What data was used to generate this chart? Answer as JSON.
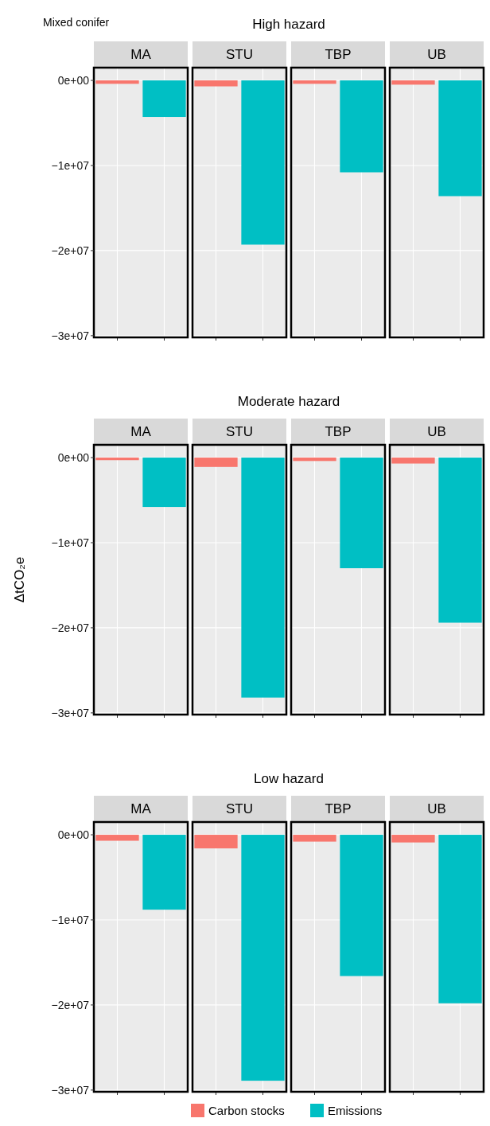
{
  "chart_data": [
    {
      "type": "bar",
      "title": "High hazard",
      "annotations": [
        "Mixed conifer"
      ],
      "categories": [
        "MA",
        "STU",
        "TBP",
        "UB"
      ],
      "series": [
        {
          "color": "#f8766d",
          "values": [
            -400000,
            -700000,
            -400000,
            -500000
          ]
        },
        {
          "color": "#00bfc4",
          "values": [
            -4300000,
            -19300000,
            -10800000,
            -13600000
          ]
        }
      ],
      "ylim": [
        -30200000,
        1500000
      ],
      "yticks": [
        {
          "value": 0,
          "label": "0e+00"
        },
        {
          "value": -10000000,
          "label": "−1e+07"
        },
        {
          "value": -20000000,
          "label": "−2e+07"
        },
        {
          "value": -30000000,
          "label": "−3e+07"
        }
      ],
      "grid": true
    },
    {
      "type": "bar",
      "title": "Moderate hazard",
      "ylabel": "ΔtCO₂e",
      "categories": [
        "MA",
        "STU",
        "TBP",
        "UB"
      ],
      "series": [
        {
          "color": "#f8766d",
          "values": [
            -300000,
            -1100000,
            -400000,
            -700000
          ]
        },
        {
          "color": "#00bfc4",
          "values": [
            -5800000,
            -28200000,
            -13000000,
            -19400000
          ]
        }
      ],
      "ylim": [
        -30200000,
        1500000
      ],
      "yticks": [
        {
          "value": 0,
          "label": "0e+00"
        },
        {
          "value": -10000000,
          "label": "−1e+07"
        },
        {
          "value": -20000000,
          "label": "−2e+07"
        },
        {
          "value": -30000000,
          "label": "−3e+07"
        }
      ],
      "grid": true
    },
    {
      "type": "bar",
      "title": "Low hazard",
      "categories": [
        "MA",
        "STU",
        "TBP",
        "UB"
      ],
      "series": [
        {
          "name": "Carbon stocks",
          "color": "#f8766d",
          "values": [
            -700000,
            -1600000,
            -800000,
            -900000
          ]
        },
        {
          "name": "Emissions",
          "color": "#00bfc4",
          "values": [
            -8800000,
            -28900000,
            -16600000,
            -19800000
          ]
        }
      ],
      "ylim": [
        -30200000,
        1500000
      ],
      "yticks": [
        {
          "value": 0,
          "label": "0e+00"
        },
        {
          "value": -10000000,
          "label": "−1e+07"
        },
        {
          "value": -20000000,
          "label": "−2e+07"
        },
        {
          "value": -30000000,
          "label": "−3e+07"
        }
      ],
      "grid": true,
      "legend": "bottom"
    }
  ]
}
